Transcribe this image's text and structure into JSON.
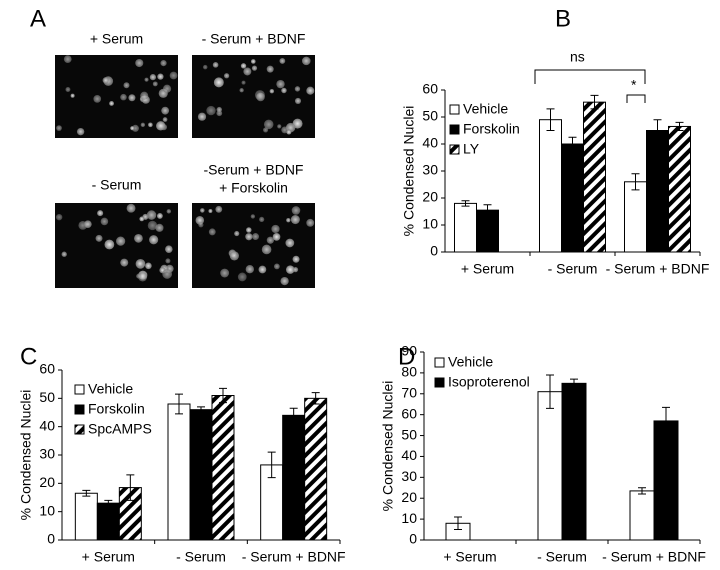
{
  "panel_a": {
    "label": "A",
    "images": [
      {
        "caption": [
          "+ Serum"
        ]
      },
      {
        "caption": [
          "- Serum + BDNF"
        ]
      },
      {
        "caption": [
          "- Serum"
        ]
      },
      {
        "caption": [
          "-Serum + BDNF",
          "+ Forskolin"
        ]
      }
    ]
  },
  "chart_data": [
    {
      "panel": "B",
      "type": "bar",
      "ylabel": "% Condensed Nuclei",
      "categories": [
        "+ Serum",
        "- Serum",
        "- Serum + BDNF"
      ],
      "ylim": [
        0,
        60
      ],
      "yticks": [
        0,
        10,
        20,
        30,
        40,
        50,
        60
      ],
      "legend": "top-left",
      "series": [
        {
          "name": "Vehicle",
          "color": "#ffffff",
          "values": [
            18,
            49,
            26
          ],
          "errors": [
            1,
            4,
            3
          ]
        },
        {
          "name": "Forskolin",
          "color": "#000000",
          "values": [
            15.5,
            40,
            45
          ],
          "errors": [
            2,
            2.5,
            4
          ]
        },
        {
          "name": "LY",
          "color": "#ffffff",
          "hatch": true,
          "values": [
            null,
            55.5,
            46.5
          ],
          "errors": [
            null,
            2.5,
            1.5
          ]
        }
      ],
      "annotations": [
        {
          "text": "ns"
        },
        {
          "text": "*"
        }
      ]
    },
    {
      "panel": "C",
      "type": "bar",
      "ylabel": "% Condensed Nuclei",
      "categories": [
        "+ Serum",
        "- Serum",
        "- Serum + BDNF"
      ],
      "ylim": [
        0,
        60
      ],
      "yticks": [
        0,
        10,
        20,
        30,
        40,
        50,
        60
      ],
      "legend": "top-left",
      "series": [
        {
          "name": "Vehicle",
          "color": "#ffffff",
          "values": [
            16.5,
            48,
            26.5
          ],
          "errors": [
            1,
            3.5,
            4.5
          ]
        },
        {
          "name": "Forskolin",
          "color": "#000000",
          "values": [
            13,
            46,
            44
          ],
          "errors": [
            1,
            1,
            2.5
          ]
        },
        {
          "name": "SpcAMPS",
          "color": "#ffffff",
          "hatch": true,
          "values": [
            18.5,
            51,
            50
          ],
          "errors": [
            4.5,
            2.5,
            2
          ]
        }
      ]
    },
    {
      "panel": "D",
      "type": "bar",
      "ylabel": "% Condensed Nuclei",
      "categories": [
        "+ Serum",
        "- Serum",
        "- Serum + BDNF"
      ],
      "ylim": [
        0,
        90
      ],
      "yticks": [
        0,
        10,
        20,
        30,
        40,
        50,
        60,
        70,
        80,
        90
      ],
      "legend": "top-left",
      "series": [
        {
          "name": "Vehicle",
          "color": "#ffffff",
          "values": [
            8,
            71,
            23.5
          ],
          "errors": [
            3,
            8,
            1.5
          ]
        },
        {
          "name": "Isoproterenol",
          "color": "#000000",
          "values": [
            null,
            75,
            57
          ],
          "errors": [
            null,
            2,
            6.5
          ]
        }
      ]
    }
  ]
}
